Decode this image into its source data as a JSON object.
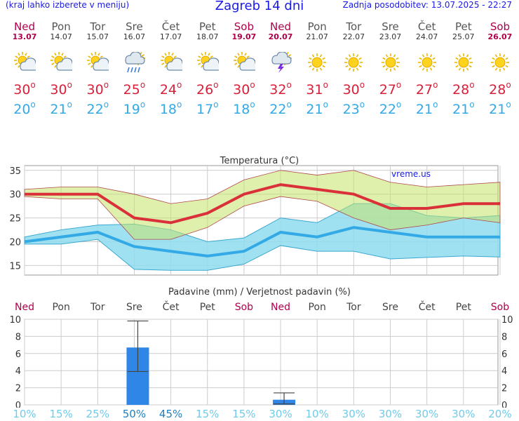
{
  "header": {
    "note": "(kraj lahko izberete v meniju)",
    "title": "Zagreb 14 dni",
    "updated": "Zadnja posodobitev: 13.07.2025 - 22:27"
  },
  "days": [
    {
      "name": "Ned",
      "date": "13.07",
      "weekend": true,
      "icon": "partly-cloudy-icon",
      "tmax": "30",
      "tmin": "20",
      "rain_mm": 0,
      "rain_pct": "10%"
    },
    {
      "name": "Pon",
      "date": "14.07",
      "weekend": false,
      "icon": "partly-cloudy-icon",
      "tmax": "30",
      "tmin": "21",
      "rain_mm": 0,
      "rain_pct": "15%"
    },
    {
      "name": "Tor",
      "date": "15.07",
      "weekend": false,
      "icon": "partly-cloudy-icon",
      "tmax": "30",
      "tmin": "22",
      "rain_mm": 0,
      "rain_pct": "25%"
    },
    {
      "name": "Sre",
      "date": "16.07",
      "weekend": false,
      "icon": "rain-shower-icon",
      "tmax": "25",
      "tmin": "19",
      "rain_mm": 6.7,
      "rain_pct": "50%"
    },
    {
      "name": "Čet",
      "date": "17.07",
      "weekend": false,
      "icon": "partly-cloudy-icon",
      "tmax": "24",
      "tmin": "18",
      "rain_mm": 0,
      "rain_pct": "45%"
    },
    {
      "name": "Pet",
      "date": "18.07",
      "weekend": false,
      "icon": "partly-cloudy-icon",
      "tmax": "26",
      "tmin": "17",
      "rain_mm": 0,
      "rain_pct": "15%"
    },
    {
      "name": "Sob",
      "date": "19.07",
      "weekend": true,
      "icon": "partly-cloudy-icon",
      "tmax": "30",
      "tmin": "18",
      "rain_mm": 0,
      "rain_pct": "15%"
    },
    {
      "name": "Ned",
      "date": "20.07",
      "weekend": true,
      "icon": "thunderstorm-icon",
      "tmax": "32",
      "tmin": "22",
      "rain_mm": 0.6,
      "rain_pct": "30%"
    },
    {
      "name": "Pon",
      "date": "21.07",
      "weekend": false,
      "icon": "sun-icon",
      "tmax": "31",
      "tmin": "21",
      "rain_mm": 0,
      "rain_pct": "10%"
    },
    {
      "name": "Tor",
      "date": "22.07",
      "weekend": false,
      "icon": "sun-icon",
      "tmax": "30",
      "tmin": "23",
      "rain_mm": 0,
      "rain_pct": "30%"
    },
    {
      "name": "Sre",
      "date": "23.07",
      "weekend": false,
      "icon": "sun-icon",
      "tmax": "27",
      "tmin": "22",
      "rain_mm": 0,
      "rain_pct": "30%"
    },
    {
      "name": "Čet",
      "date": "24.07",
      "weekend": false,
      "icon": "sun-icon",
      "tmax": "27",
      "tmin": "21",
      "rain_mm": 0,
      "rain_pct": "30%"
    },
    {
      "name": "Pet",
      "date": "25.07",
      "weekend": false,
      "icon": "sun-icon",
      "tmax": "28",
      "tmin": "21",
      "rain_mm": 0,
      "rain_pct": "30%"
    },
    {
      "name": "Sob",
      "date": "26.07",
      "weekend": true,
      "icon": "sun-icon",
      "tmax": "28",
      "tmin": "21",
      "rain_mm": 0,
      "rain_pct": "20%"
    }
  ],
  "colors": {
    "max": "#d9203a",
    "min": "#33a9e6",
    "weekend": "#b0004a",
    "max_band": "#d6ea9c",
    "min_band": "#8fdcee",
    "bar": "#2f86e6"
  },
  "chart_data": [
    {
      "type": "line",
      "title": "Temperatura (°C)",
      "watermark": "vreme.us",
      "ylim": [
        13,
        36
      ],
      "yticks": [
        "15",
        "20",
        "25",
        "30",
        "35"
      ],
      "x": [
        1,
        2,
        3,
        4,
        5,
        6,
        7,
        8,
        9,
        10,
        11,
        12,
        13,
        14
      ],
      "series": [
        {
          "name": "max",
          "values": [
            30,
            30,
            30,
            25,
            24,
            26,
            30,
            32,
            31,
            30,
            27,
            27,
            28,
            28
          ]
        },
        {
          "name": "min",
          "values": [
            20,
            21,
            22,
            19,
            18,
            17,
            18,
            22,
            21,
            23,
            22,
            21,
            21,
            21
          ]
        }
      ],
      "bands": [
        {
          "name": "max",
          "low": [
            29.5,
            29,
            29,
            20.5,
            20.5,
            23,
            27.5,
            29.5,
            28.5,
            25,
            22.5,
            23.5,
            25,
            24
          ],
          "high": [
            31,
            31.5,
            31.5,
            30,
            28,
            29,
            33,
            35,
            34,
            35,
            32.5,
            31.5,
            32,
            32.5
          ]
        },
        {
          "name": "min",
          "low": [
            19.5,
            19.5,
            20.5,
            14.2,
            14,
            14,
            15.3,
            19.2,
            18,
            18,
            16.4,
            16.7,
            17,
            16.8
          ],
          "high": [
            21,
            22.5,
            23.5,
            23.7,
            22.5,
            20,
            20.8,
            25,
            24,
            28,
            28,
            25.5,
            25,
            25.5
          ]
        }
      ]
    },
    {
      "type": "bar",
      "title": "Padavine (mm) / Verjetnost padavin (%)",
      "ylim": [
        0,
        10
      ],
      "yticks": [
        "0",
        "2",
        "4",
        "6",
        "8",
        "10"
      ],
      "categories": [
        "Ned",
        "Pon",
        "Tor",
        "Sre",
        "Čet",
        "Pet",
        "Sob",
        "Ned",
        "Pon",
        "Tor",
        "Sre",
        "Čet",
        "Pet",
        "Sob"
      ],
      "values": [
        0,
        0,
        0,
        6.7,
        0,
        0,
        0,
        0.6,
        0,
        0,
        0,
        0,
        0,
        0
      ],
      "error_low": [
        0,
        0,
        0,
        3.9,
        0,
        0,
        0,
        0.1,
        0,
        0,
        0,
        0,
        0,
        0
      ],
      "error_high": [
        0,
        0,
        0,
        9.8,
        0,
        0,
        0,
        1.4,
        0,
        0,
        0,
        0,
        0,
        0
      ]
    }
  ]
}
